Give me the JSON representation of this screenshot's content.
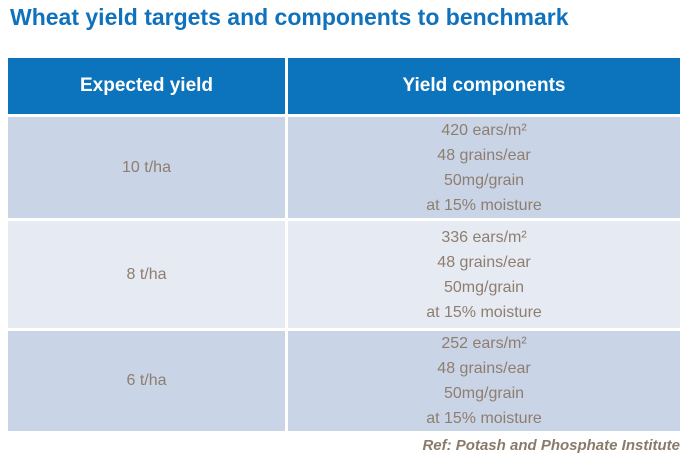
{
  "title": "Wheat yield targets and components to benchmark",
  "table": {
    "headers": [
      "Expected yield",
      "Yield components"
    ],
    "rows": [
      {
        "yield": "10 t/ha",
        "components": [
          "420 ears/m²",
          "48 grains/ear",
          "50mg/grain",
          "at 15% moisture"
        ]
      },
      {
        "yield": "8 t/ha",
        "components": [
          "336 ears/m²",
          "48 grains/ear",
          "50mg/grain",
          "at 15% moisture"
        ]
      },
      {
        "yield": "6 t/ha",
        "components": [
          "252 ears/m²",
          "48 grains/ear",
          "50mg/grain",
          "at 15% moisture"
        ]
      }
    ]
  },
  "footer": "Ref: Potash and Phosphate Institute",
  "colors": {
    "title_blue": "#1072BC",
    "header_blue": "#0C74BD",
    "row_alt_dark": "#C9D4E6",
    "row_alt_light": "#E6EAF2",
    "body_text": "#8E7E6F",
    "footer_text": "#8A7A6A"
  }
}
